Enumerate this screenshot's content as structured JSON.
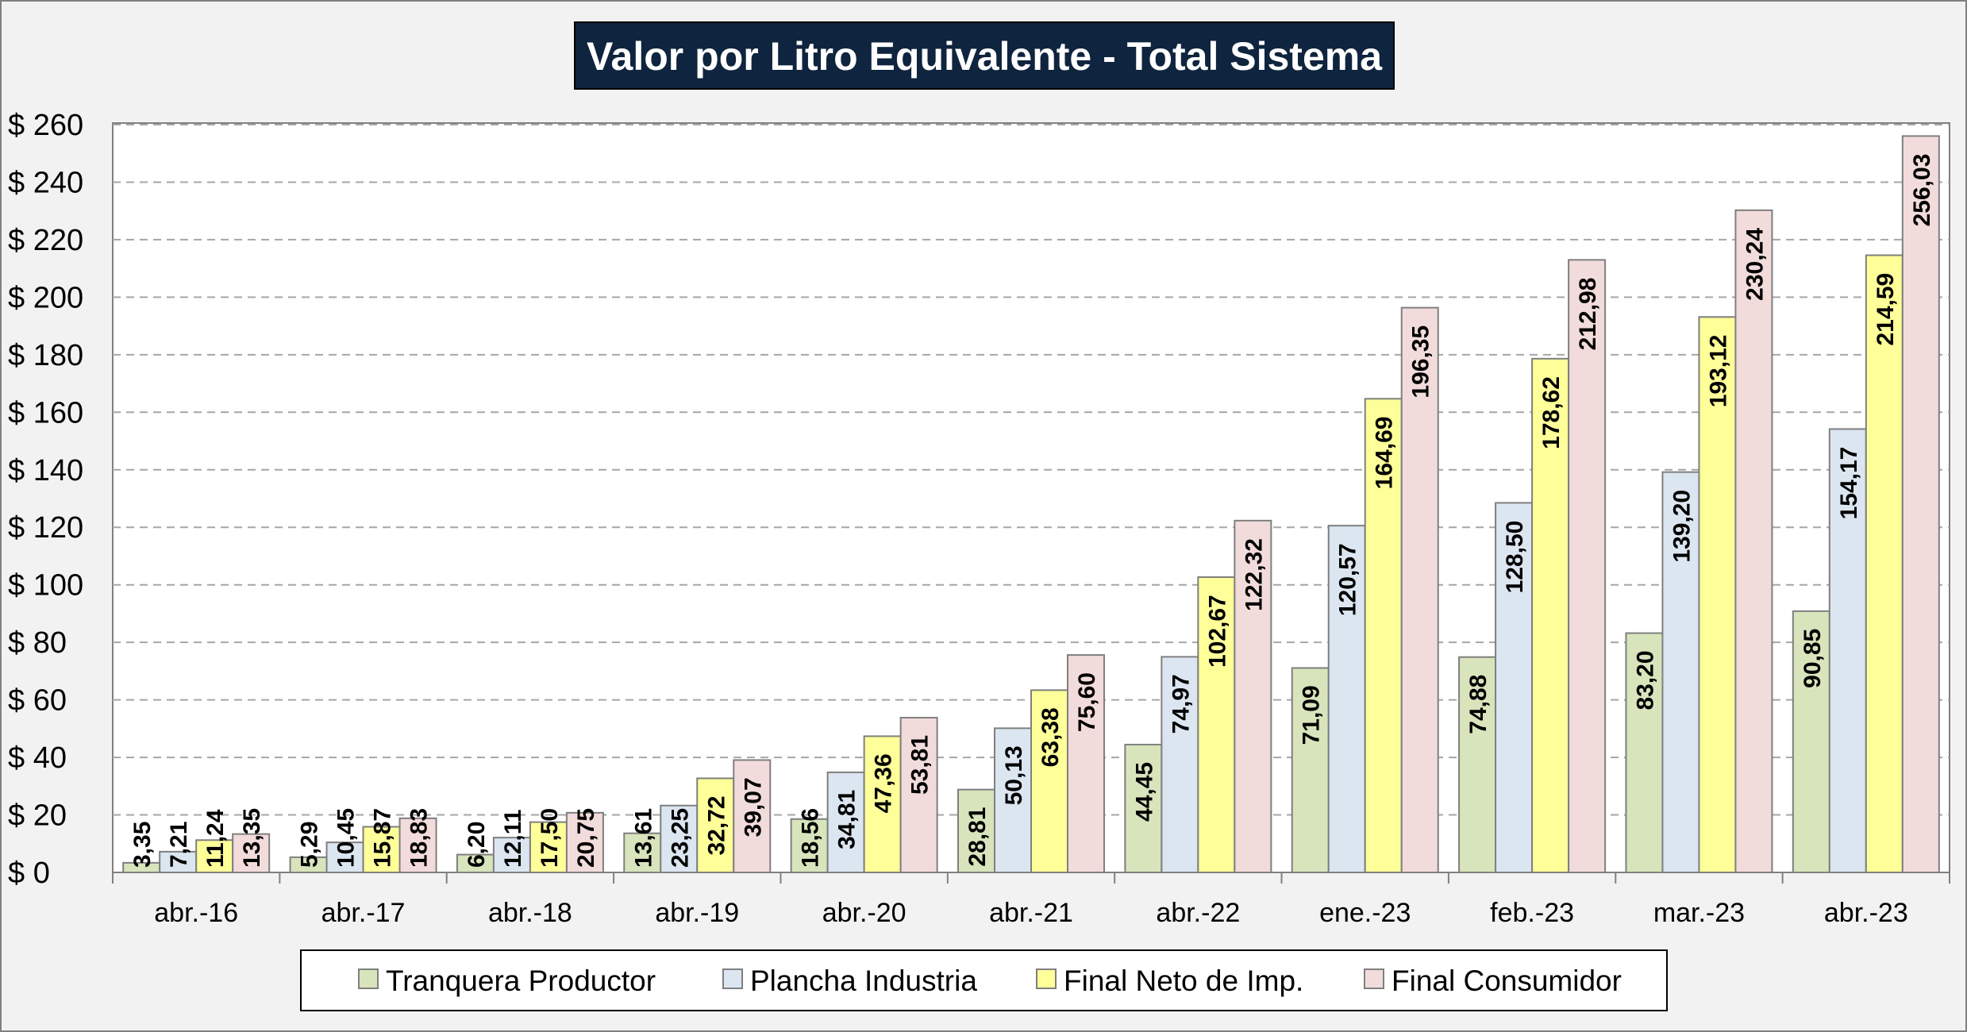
{
  "chart_data": {
    "type": "bar",
    "title": "Valor por Litro Equivalente - Total Sistema",
    "xlabel": "",
    "ylabel": "",
    "ylim": [
      0,
      260
    ],
    "ytick_step": 20,
    "ytick_prefix": "$ ",
    "grid": "horizontal-dashed",
    "legend_position": "bottom",
    "categories": [
      "abr.-16",
      "abr.-17",
      "abr.-18",
      "abr.-19",
      "abr.-20",
      "abr.-21",
      "abr.-22",
      "ene.-23",
      "feb.-23",
      "mar.-23",
      "abr.-23"
    ],
    "series": [
      {
        "name": "Tranquera Productor",
        "color": "#d8e4bc",
        "values": [
          3.35,
          5.29,
          6.2,
          13.61,
          18.56,
          28.81,
          44.45,
          71.09,
          74.88,
          83.2,
          90.85
        ],
        "labels": [
          "3,35",
          "5,29",
          "6,20",
          "13,61",
          "18,56",
          "28,81",
          "44,45",
          "71,09",
          "74,88",
          "83,20",
          "90,85"
        ]
      },
      {
        "name": "Plancha Industria",
        "color": "#dce6f1",
        "values": [
          7.21,
          10.45,
          12.11,
          23.25,
          34.81,
          50.13,
          74.97,
          120.57,
          128.5,
          139.2,
          154.17
        ],
        "labels": [
          "7,21",
          "10,45",
          "12,11",
          "23,25",
          "34,81",
          "50,13",
          "74,97",
          "120,57",
          "128,50",
          "139,20",
          "154,17"
        ]
      },
      {
        "name": "Final Neto de Imp.",
        "color": "#ffff99",
        "values": [
          11.24,
          15.87,
          17.5,
          32.72,
          47.36,
          63.38,
          102.67,
          164.69,
          178.62,
          193.12,
          214.59
        ],
        "labels": [
          "11,24",
          "15,87",
          "17,50",
          "32,72",
          "47,36",
          "63,38",
          "102,67",
          "164,69",
          "178,62",
          "193,12",
          "214,59"
        ]
      },
      {
        "name": "Final Consumidor",
        "color": "#f2dcdb",
        "values": [
          13.35,
          18.83,
          20.75,
          39.07,
          53.81,
          75.6,
          122.32,
          196.35,
          212.98,
          230.24,
          256.03
        ],
        "labels": [
          "13,35",
          "18,83",
          "20,75",
          "39,07",
          "53,81",
          "75,60",
          "122,32",
          "196,35",
          "212,98",
          "230,24",
          "256,03"
        ]
      }
    ]
  }
}
